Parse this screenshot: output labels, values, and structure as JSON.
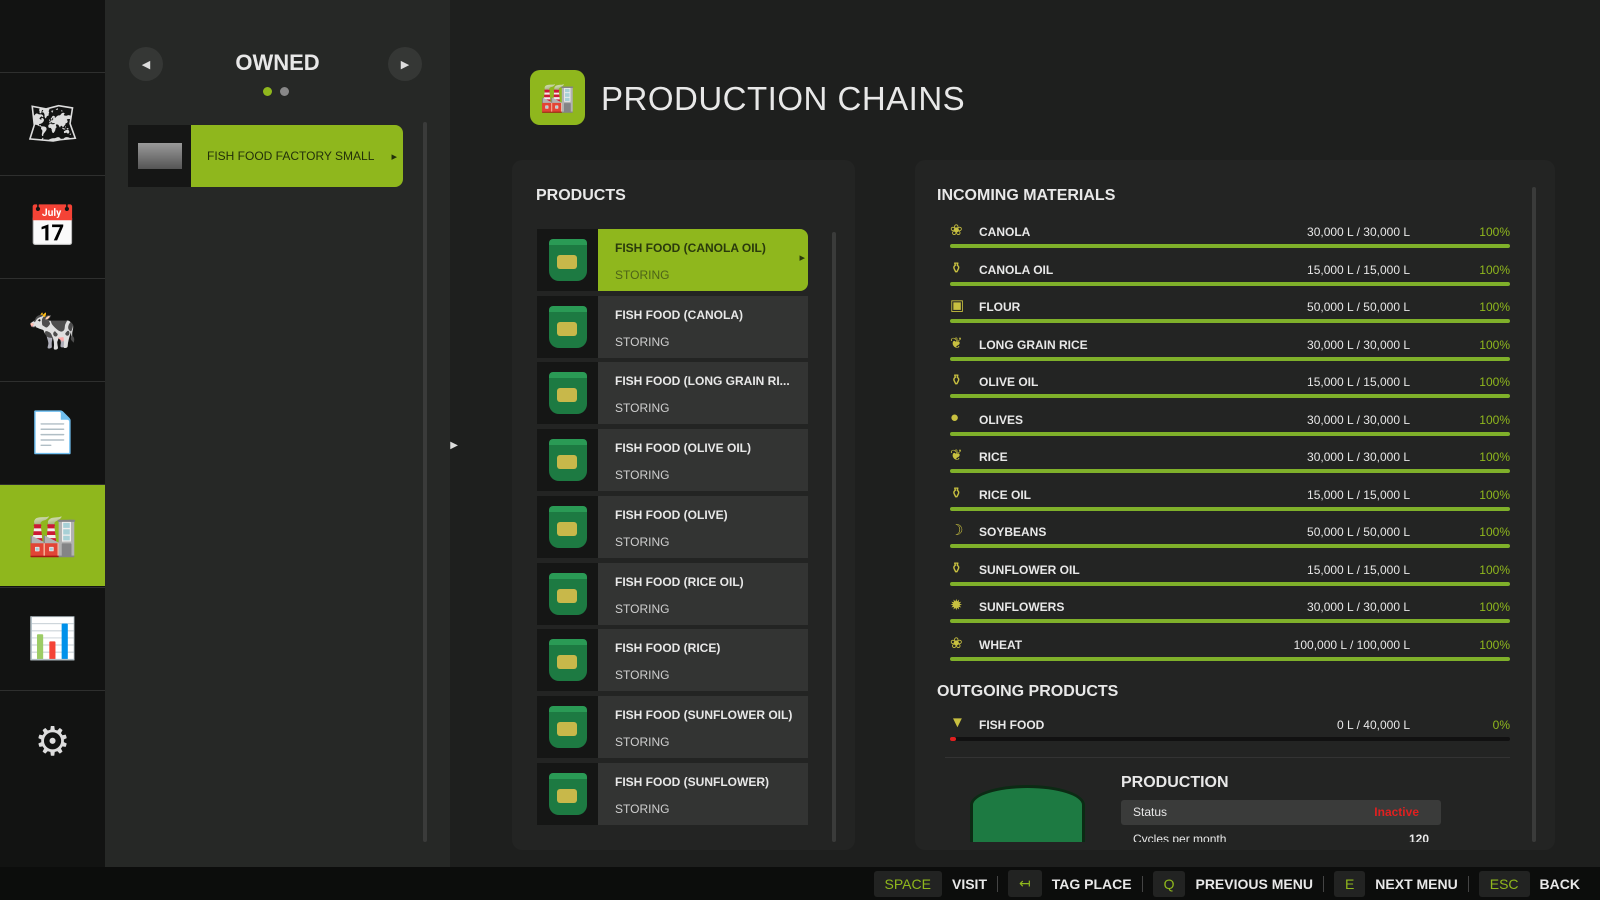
{
  "nav": {
    "items": [
      {
        "icon": "map-icon",
        "glyph": "🗺"
      },
      {
        "icon": "calendar-icon",
        "glyph": "📅"
      },
      {
        "icon": "animals-icon",
        "glyph": "🐄"
      },
      {
        "icon": "contracts-icon",
        "glyph": "📄"
      },
      {
        "icon": "production-icon",
        "glyph": "🏭"
      },
      {
        "icon": "statistics-icon",
        "glyph": "📊"
      },
      {
        "icon": "settings-icon",
        "glyph": "⚙"
      }
    ],
    "active": 4
  },
  "side": {
    "title": "OWNED",
    "pages": 2,
    "current_page": 1,
    "factory": "FISH FOOD FACTORY SMALL"
  },
  "header": {
    "title": "PRODUCTION CHAINS"
  },
  "products": {
    "title": "PRODUCTS",
    "items": [
      {
        "name": "FISH FOOD (CANOLA OIL)",
        "status": "STORING"
      },
      {
        "name": "FISH FOOD (CANOLA)",
        "status": "STORING"
      },
      {
        "name": "FISH FOOD (LONG GRAIN RI...",
        "status": "STORING"
      },
      {
        "name": "FISH FOOD (OLIVE OIL)",
        "status": "STORING"
      },
      {
        "name": "FISH FOOD (OLIVE)",
        "status": "STORING"
      },
      {
        "name": "FISH FOOD (RICE OIL)",
        "status": "STORING"
      },
      {
        "name": "FISH FOOD (RICE)",
        "status": "STORING"
      },
      {
        "name": "FISH FOOD (SUNFLOWER OIL)",
        "status": "STORING"
      },
      {
        "name": "FISH FOOD (SUNFLOWER)",
        "status": "STORING"
      }
    ],
    "selected": 0
  },
  "incoming": {
    "title": "INCOMING MATERIALS",
    "items": [
      {
        "name": "CANOLA",
        "amount": "30,000 L / 30,000 L",
        "percent": "100%",
        "fill": 1,
        "glyph": "❀"
      },
      {
        "name": "CANOLA OIL",
        "amount": "15,000 L / 15,000 L",
        "percent": "100%",
        "fill": 1,
        "glyph": "⚱"
      },
      {
        "name": "FLOUR",
        "amount": "50,000 L / 50,000 L",
        "percent": "100%",
        "fill": 1,
        "glyph": "▣"
      },
      {
        "name": "LONG GRAIN RICE",
        "amount": "30,000 L / 30,000 L",
        "percent": "100%",
        "fill": 1,
        "glyph": "❦"
      },
      {
        "name": "OLIVE OIL",
        "amount": "15,000 L / 15,000 L",
        "percent": "100%",
        "fill": 1,
        "glyph": "⚱"
      },
      {
        "name": "OLIVES",
        "amount": "30,000 L / 30,000 L",
        "percent": "100%",
        "fill": 1,
        "glyph": "●"
      },
      {
        "name": "RICE",
        "amount": "30,000 L / 30,000 L",
        "percent": "100%",
        "fill": 1,
        "glyph": "❦"
      },
      {
        "name": "RICE OIL",
        "amount": "15,000 L / 15,000 L",
        "percent": "100%",
        "fill": 1,
        "glyph": "⚱"
      },
      {
        "name": "SOYBEANS",
        "amount": "50,000 L / 50,000 L",
        "percent": "100%",
        "fill": 1,
        "glyph": "☽"
      },
      {
        "name": "SUNFLOWER OIL",
        "amount": "15,000 L / 15,000 L",
        "percent": "100%",
        "fill": 1,
        "glyph": "⚱"
      },
      {
        "name": "SUNFLOWERS",
        "amount": "30,000 L / 30,000 L",
        "percent": "100%",
        "fill": 1,
        "glyph": "✹"
      },
      {
        "name": "WHEAT",
        "amount": "100,000 L / 100,000 L",
        "percent": "100%",
        "fill": 1,
        "glyph": "❀"
      }
    ]
  },
  "outgoing": {
    "title": "OUTGOING PRODUCTS",
    "items": [
      {
        "name": "FISH FOOD",
        "amount": "0 L / 40,000 L",
        "percent": "0%",
        "fill": 0,
        "glyph": "▼"
      }
    ]
  },
  "production": {
    "title": "PRODUCTION",
    "status_label": "Status",
    "status_value": "Inactive",
    "cycles_label": "Cycles per month",
    "cycles_value": "120"
  },
  "footer": [
    {
      "key": "SPACE",
      "action": "VISIT"
    },
    {
      "key": "↤",
      "action": "TAG PLACE"
    },
    {
      "key": "Q",
      "action": "PREVIOUS MENU"
    },
    {
      "key": "E",
      "action": "NEXT MENU"
    },
    {
      "key": "ESC",
      "action": "BACK"
    }
  ],
  "colors": {
    "accent": "#8fb71d",
    "inactive": "#e02020"
  }
}
